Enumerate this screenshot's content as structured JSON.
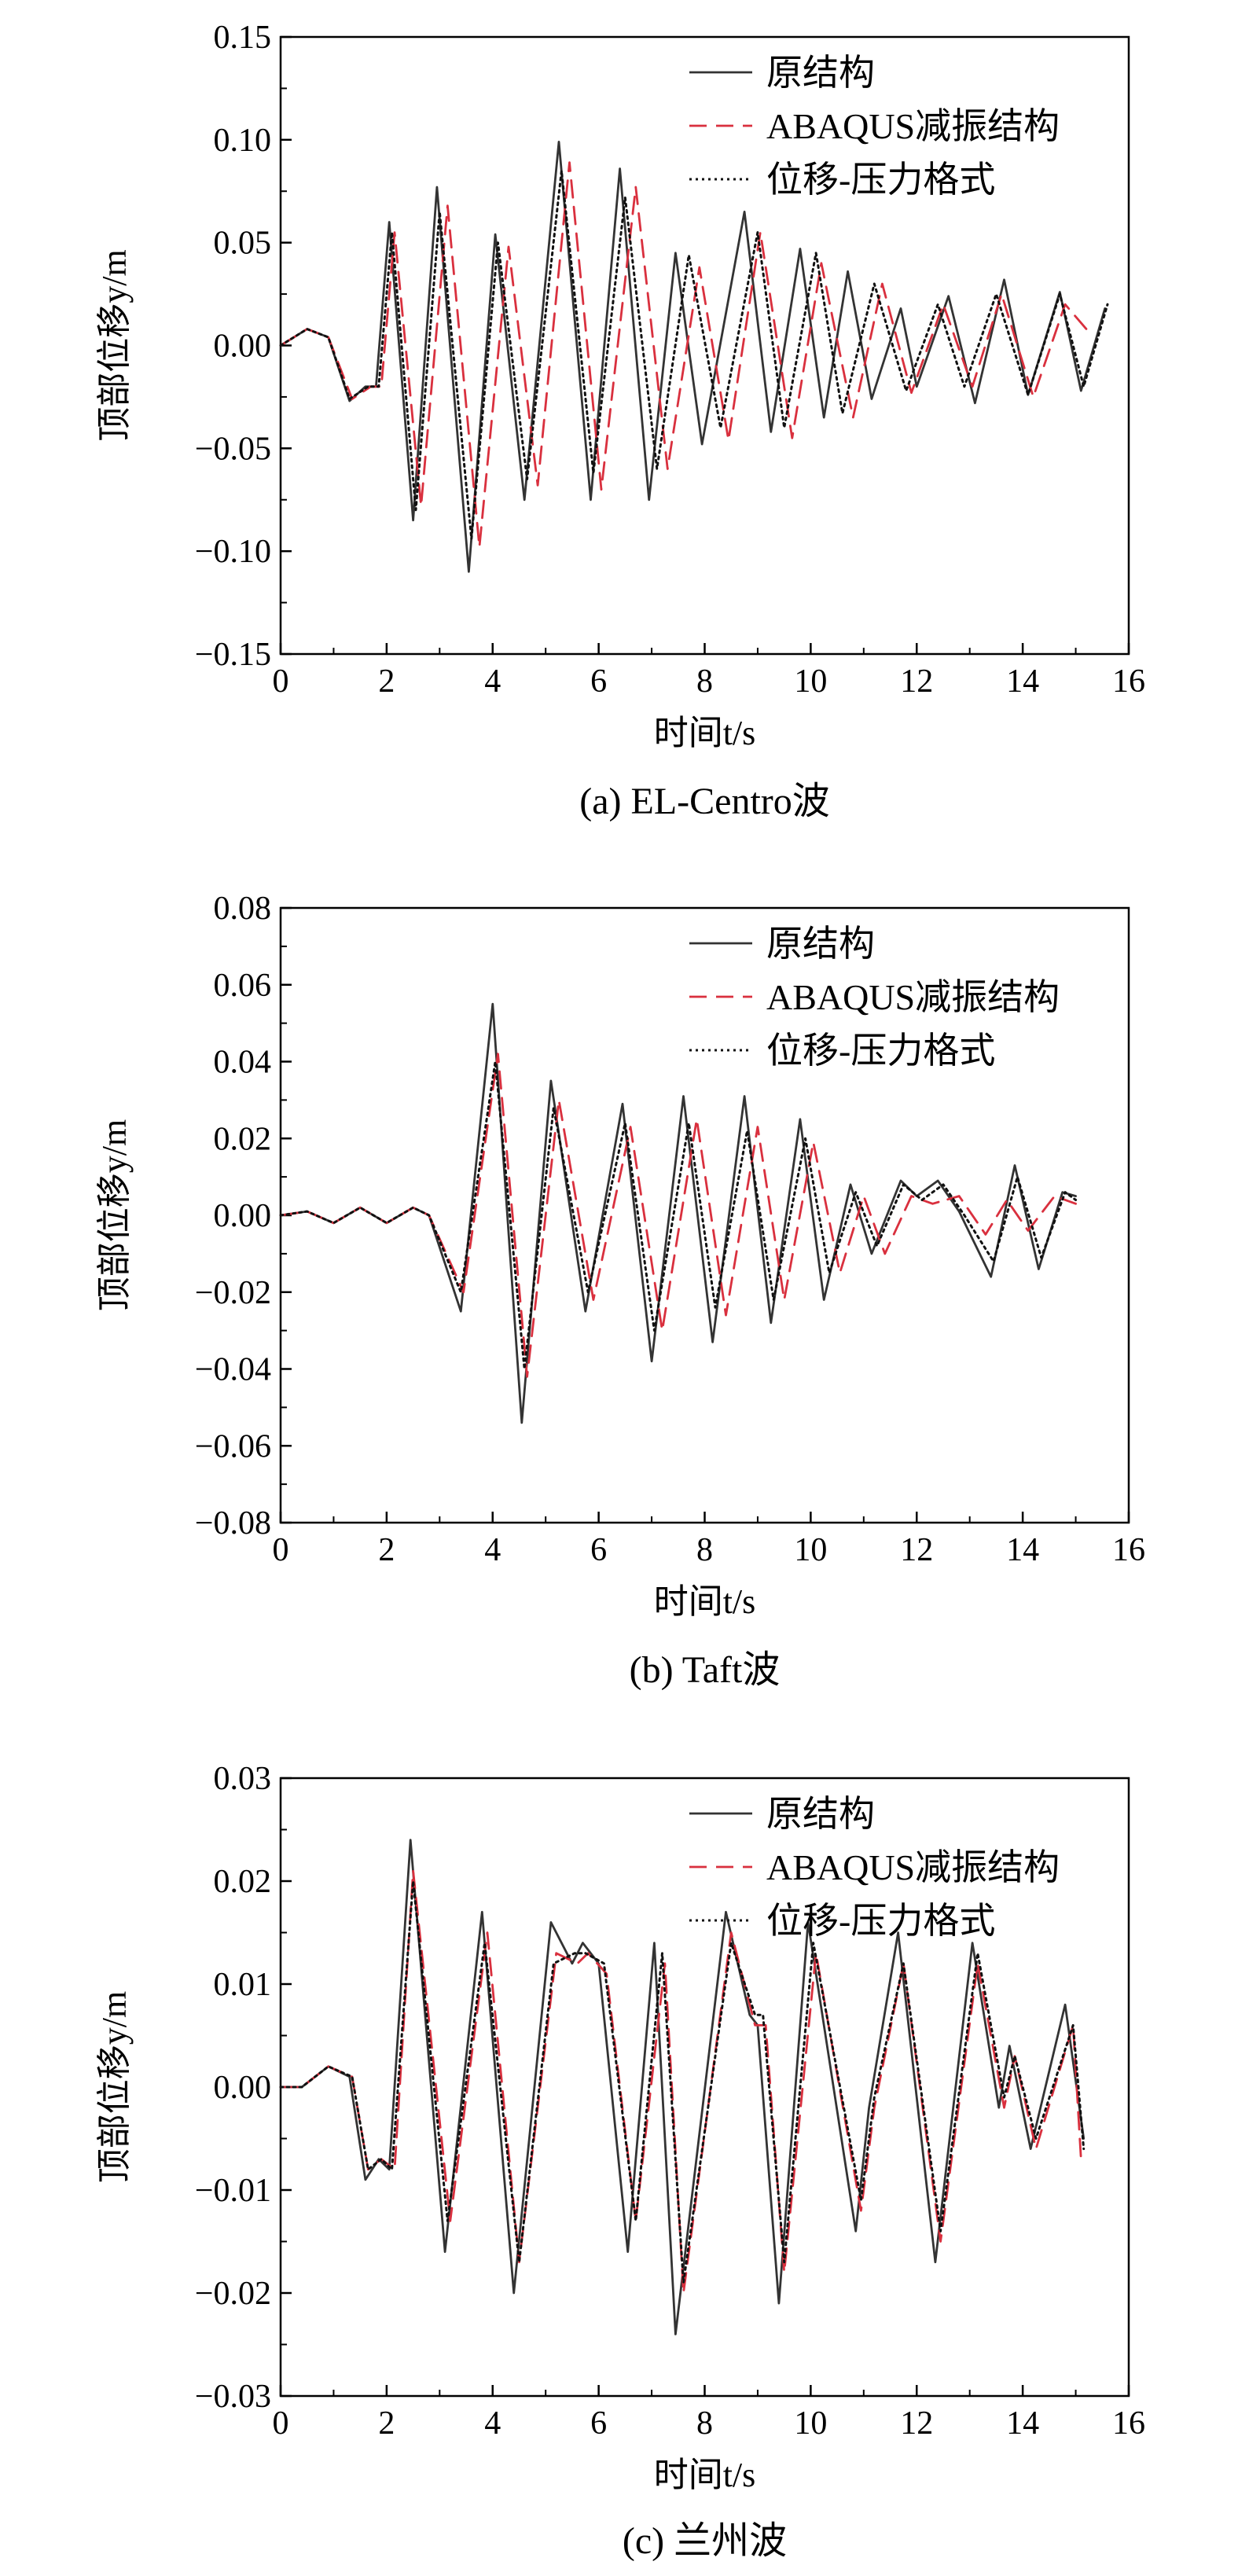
{
  "chart_data": [
    {
      "type": "line",
      "caption": "(a) EL-Centro波",
      "xlabel": "时间t/s",
      "ylabel": "顶部位移y/m",
      "xlim": [
        0,
        16
      ],
      "ylim": [
        -0.15,
        0.15
      ],
      "xticks": [
        0,
        2,
        4,
        6,
        8,
        10,
        12,
        14,
        16
      ],
      "yticks": [
        -0.15,
        -0.1,
        -0.05,
        0.0,
        0.05,
        0.1,
        0.15
      ],
      "ytick_labels": [
        "−0.15",
        "−0.10",
        "−0.05",
        "0.00",
        "0.05",
        "0.10",
        "0.15"
      ],
      "legend_position": "top-right",
      "grid": false,
      "series": [
        {
          "name": "原结构",
          "style": "solid",
          "color": "#333333",
          "x": [
            0,
            0.5,
            0.9,
            1.3,
            1.6,
            1.8,
            2.05,
            2.5,
            2.95,
            3.55,
            4.05,
            4.6,
            5.25,
            5.85,
            6.4,
            6.95,
            7.45,
            7.95,
            8.75,
            9.25,
            9.8,
            10.25,
            10.7,
            11.15,
            11.7,
            12.0,
            12.6,
            13.1,
            13.65,
            14.1,
            14.7,
            15.1,
            15.55
          ],
          "y": [
            0,
            0.008,
            0.004,
            -0.027,
            -0.02,
            -0.02,
            0.06,
            -0.085,
            0.077,
            -0.11,
            0.054,
            -0.075,
            0.099,
            -0.075,
            0.086,
            -0.075,
            0.045,
            -0.048,
            0.065,
            -0.042,
            0.047,
            -0.035,
            0.036,
            -0.026,
            0.018,
            -0.02,
            0.024,
            -0.028,
            0.032,
            -0.024,
            0.026,
            -0.022,
            0.018
          ]
        },
        {
          "name": "ABAQUS减振结构",
          "style": "dashed",
          "color": "#d9303e",
          "x": [
            0,
            0.5,
            0.9,
            1.35,
            1.7,
            1.9,
            2.15,
            2.65,
            3.15,
            3.75,
            4.3,
            4.85,
            5.45,
            6.05,
            6.7,
            7.3,
            7.9,
            8.45,
            9.05,
            9.65,
            10.2,
            10.8,
            11.35,
            11.9,
            12.5,
            13.05,
            13.6,
            14.2,
            14.8,
            15.3
          ],
          "y": [
            0,
            0.008,
            0.004,
            -0.026,
            -0.02,
            -0.02,
            0.055,
            -0.078,
            0.068,
            -0.098,
            0.048,
            -0.068,
            0.089,
            -0.07,
            0.077,
            -0.06,
            0.038,
            -0.046,
            0.055,
            -0.045,
            0.04,
            -0.035,
            0.03,
            -0.023,
            0.02,
            -0.02,
            0.025,
            -0.025,
            0.02,
            0.005
          ]
        },
        {
          "name": "位移-压力格式",
          "style": "dotted",
          "color": "#111111",
          "x": [
            0,
            0.5,
            0.9,
            1.3,
            1.65,
            1.85,
            2.1,
            2.55,
            3.0,
            3.6,
            4.1,
            4.65,
            5.3,
            5.9,
            6.5,
            7.1,
            7.7,
            8.3,
            9.0,
            9.5,
            10.1,
            10.6,
            11.2,
            11.8,
            12.4,
            12.9,
            13.5,
            14.1,
            14.7,
            15.15,
            15.6
          ],
          "y": [
            0,
            0.008,
            0.004,
            -0.026,
            -0.02,
            -0.02,
            0.055,
            -0.08,
            0.065,
            -0.094,
            0.05,
            -0.065,
            0.085,
            -0.062,
            0.072,
            -0.06,
            0.044,
            -0.04,
            0.055,
            -0.04,
            0.045,
            -0.033,
            0.03,
            -0.022,
            0.02,
            -0.02,
            0.025,
            -0.024,
            0.025,
            -0.02,
            0.02
          ]
        }
      ]
    },
    {
      "type": "line",
      "caption": "(b) Taft波",
      "xlabel": "时间t/s",
      "ylabel": "顶部位移y/m",
      "xlim": [
        0,
        16
      ],
      "ylim": [
        -0.08,
        0.08
      ],
      "xticks": [
        0,
        2,
        4,
        6,
        8,
        10,
        12,
        14,
        16
      ],
      "yticks": [
        -0.08,
        -0.06,
        -0.04,
        -0.02,
        0.0,
        0.02,
        0.04,
        0.06,
        0.08
      ],
      "ytick_labels": [
        "−0.08",
        "−0.06",
        "−0.04",
        "−0.02",
        "0.00",
        "0.02",
        "0.04",
        "0.06",
        "0.08"
      ],
      "legend_position": "top-right",
      "grid": false,
      "series": [
        {
          "name": "原结构",
          "style": "solid",
          "color": "#333333",
          "x": [
            0,
            0.5,
            1.0,
            1.5,
            2.0,
            2.5,
            2.8,
            3.4,
            4.0,
            4.55,
            5.1,
            5.75,
            6.45,
            7.0,
            7.6,
            8.15,
            8.75,
            9.25,
            9.8,
            10.25,
            10.75,
            11.15,
            11.7,
            12.0,
            12.4,
            12.8,
            13.4,
            13.85,
            14.3,
            14.75,
            15.0
          ],
          "y": [
            0,
            0.001,
            -0.002,
            0.002,
            -0.002,
            0.002,
            0.0,
            -0.025,
            0.055,
            -0.054,
            0.035,
            -0.025,
            0.029,
            -0.038,
            0.031,
            -0.033,
            0.031,
            -0.028,
            0.025,
            -0.022,
            0.008,
            -0.01,
            0.009,
            0.005,
            0.009,
            0.001,
            -0.016,
            0.013,
            -0.014,
            0.006,
            0.005
          ]
        },
        {
          "name": "ABAQUS减振结构",
          "style": "dashed",
          "color": "#d9303e",
          "x": [
            0,
            0.5,
            1.0,
            1.5,
            2.0,
            2.5,
            2.8,
            3.45,
            4.1,
            4.65,
            5.25,
            5.9,
            6.6,
            7.2,
            7.85,
            8.4,
            9.0,
            9.5,
            10.05,
            10.55,
            11.0,
            11.4,
            11.9,
            12.3,
            12.8,
            13.3,
            13.7,
            14.1,
            14.6,
            15.0
          ],
          "y": [
            0,
            0.001,
            -0.002,
            0.002,
            -0.002,
            0.002,
            0.0,
            -0.02,
            0.042,
            -0.042,
            0.03,
            -0.022,
            0.023,
            -0.03,
            0.025,
            -0.026,
            0.023,
            -0.022,
            0.019,
            -0.015,
            0.005,
            -0.01,
            0.005,
            0.003,
            0.005,
            -0.005,
            0.004,
            -0.004,
            0.005,
            0.003
          ]
        },
        {
          "name": "位移-压力格式",
          "style": "dotted",
          "color": "#111111",
          "x": [
            0,
            0.5,
            1.0,
            1.5,
            2.0,
            2.5,
            2.8,
            3.4,
            4.05,
            4.6,
            5.15,
            5.8,
            6.5,
            7.05,
            7.7,
            8.2,
            8.8,
            9.3,
            9.9,
            10.35,
            10.85,
            11.25,
            11.75,
            12.1,
            12.5,
            12.9,
            13.45,
            13.9,
            14.35,
            14.8,
            15.0
          ],
          "y": [
            0,
            0.001,
            -0.002,
            0.002,
            -0.002,
            0.002,
            0.0,
            -0.02,
            0.04,
            -0.04,
            0.028,
            -0.02,
            0.024,
            -0.03,
            0.024,
            -0.024,
            0.022,
            -0.022,
            0.02,
            -0.015,
            0.006,
            -0.008,
            0.008,
            0.004,
            0.008,
            0.0,
            -0.012,
            0.01,
            -0.011,
            0.006,
            0.004
          ]
        }
      ]
    },
    {
      "type": "line",
      "caption": "(c) 兰州波",
      "xlabel": "时间t/s",
      "ylabel": "顶部位移y/m",
      "xlim": [
        0,
        16
      ],
      "ylim": [
        -0.03,
        0.03
      ],
      "xticks": [
        0,
        2,
        4,
        6,
        8,
        10,
        12,
        14,
        16
      ],
      "yticks": [
        -0.03,
        -0.02,
        -0.01,
        0.0,
        0.01,
        0.02,
        0.03
      ],
      "ytick_labels": [
        "−0.03",
        "−0.02",
        "−0.01",
        "0.00",
        "0.01",
        "0.02",
        "0.03"
      ],
      "legend_position": "top-right",
      "grid": false,
      "series": [
        {
          "name": "原结构",
          "style": "solid",
          "color": "#333333",
          "x": [
            0,
            0.4,
            0.9,
            1.3,
            1.6,
            1.85,
            2.05,
            2.45,
            3.1,
            3.8,
            4.4,
            5.1,
            5.5,
            5.7,
            6.0,
            6.55,
            7.05,
            7.45,
            8.4,
            8.85,
            9.0,
            9.4,
            9.95,
            10.85,
            11.1,
            11.65,
            12.35,
            13.05,
            13.55,
            13.75,
            14.15,
            14.8,
            15.15
          ],
          "y": [
            0,
            0.0,
            0.002,
            0.001,
            -0.009,
            -0.007,
            -0.008,
            0.024,
            -0.016,
            0.017,
            -0.02,
            0.016,
            0.012,
            0.014,
            0.012,
            -0.016,
            0.014,
            -0.024,
            0.017,
            0.007,
            0.006,
            -0.021,
            0.016,
            -0.014,
            -0.002,
            0.015,
            -0.017,
            0.014,
            -0.002,
            0.004,
            -0.006,
            0.008,
            -0.005
          ]
        },
        {
          "name": "ABAQUS减振结构",
          "style": "dashed",
          "color": "#d9303e",
          "x": [
            0,
            0.4,
            0.9,
            1.35,
            1.65,
            1.9,
            2.15,
            2.5,
            3.2,
            3.9,
            4.5,
            5.2,
            5.6,
            5.8,
            6.15,
            6.7,
            7.25,
            7.6,
            8.5,
            8.95,
            9.15,
            9.5,
            10.1,
            10.95,
            11.2,
            11.75,
            12.45,
            13.15,
            13.65,
            13.85,
            14.25,
            14.95,
            15.1
          ],
          "y": [
            0,
            0.0,
            0.002,
            0.001,
            -0.008,
            -0.007,
            -0.008,
            0.021,
            -0.013,
            0.015,
            -0.017,
            0.013,
            0.012,
            0.013,
            0.011,
            -0.013,
            0.012,
            -0.02,
            0.015,
            0.006,
            0.006,
            -0.018,
            0.013,
            -0.012,
            -0.002,
            0.012,
            -0.015,
            0.012,
            -0.002,
            0.003,
            -0.006,
            0.006,
            -0.007
          ]
        },
        {
          "name": "位移-压力格式",
          "style": "dotted",
          "color": "#111111",
          "x": [
            0,
            0.4,
            0.9,
            1.35,
            1.65,
            1.9,
            2.1,
            2.5,
            3.15,
            3.85,
            4.5,
            5.15,
            5.55,
            5.75,
            6.1,
            6.7,
            7.2,
            7.6,
            8.5,
            8.95,
            9.1,
            9.5,
            10.05,
            10.95,
            11.2,
            11.75,
            12.45,
            13.15,
            13.65,
            13.85,
            14.25,
            14.95,
            15.15
          ],
          "y": [
            0,
            0.0,
            0.002,
            0.001,
            -0.008,
            -0.007,
            -0.008,
            0.02,
            -0.013,
            0.014,
            -0.017,
            0.012,
            0.013,
            0.013,
            0.012,
            -0.013,
            0.013,
            -0.019,
            0.014,
            0.007,
            0.007,
            -0.017,
            0.014,
            -0.011,
            -0.001,
            0.012,
            -0.014,
            0.013,
            -0.001,
            0.003,
            -0.005,
            0.006,
            -0.006
          ]
        }
      ]
    }
  ]
}
